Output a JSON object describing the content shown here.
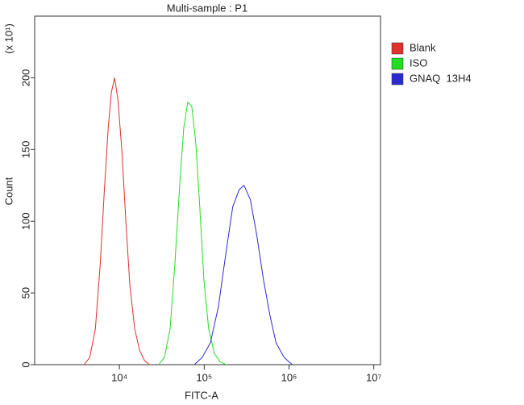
{
  "chart_data": {
    "type": "line",
    "title": "Multi-sample : P1",
    "x_label": "FITC-A",
    "y_label": "Count",
    "y_multiplier": "(x 10¹)",
    "x_scale": "log",
    "xlim": [
      1000,
      12000000
    ],
    "xticks": [
      {
        "value": 10000,
        "label": "10⁴"
      },
      {
        "value": 100000,
        "label": "10⁵"
      },
      {
        "value": 1000000,
        "label": "10⁶"
      },
      {
        "value": 10000000,
        "label": "10⁷"
      }
    ],
    "ylim": [
      0,
      243
    ],
    "yticks": [
      0,
      50,
      100,
      150,
      200
    ],
    "grid": false,
    "legend": "right",
    "series": [
      {
        "name": "Blank",
        "color": "#e0302a",
        "x": [
          3830,
          4460,
          5200,
          5930,
          6610,
          7360,
          8040,
          8770,
          9570,
          10670,
          11900,
          13270,
          15130,
          17250,
          19670,
          22430
        ],
        "values": [
          0,
          5,
          25,
          70,
          120,
          165,
          190,
          200,
          185,
          150,
          100,
          55,
          25,
          10,
          3,
          0
        ]
      },
      {
        "name": "ISO",
        "color": "#22dd22",
        "x": [
          29110,
          33950,
          39550,
          45080,
          51400,
          57300,
          63930,
          71290,
          79470,
          88640,
          98850,
          112700,
          131300,
          153000,
          182300
        ],
        "values": [
          0,
          5,
          25,
          70,
          125,
          165,
          183,
          180,
          155,
          110,
          60,
          25,
          8,
          2,
          0
        ]
      },
      {
        "name": "GNAQ  13H4",
        "color": "#2a2ad0",
        "x": [
          76210,
          94700,
          117800,
          146500,
          182300,
          216900,
          258200,
          294400,
          350600,
          417500,
          497600,
          592900,
          704700,
          877000,
          1091000
        ],
        "values": [
          0,
          5,
          15,
          40,
          80,
          110,
          122,
          125,
          115,
          90,
          60,
          35,
          15,
          5,
          0
        ]
      }
    ]
  }
}
